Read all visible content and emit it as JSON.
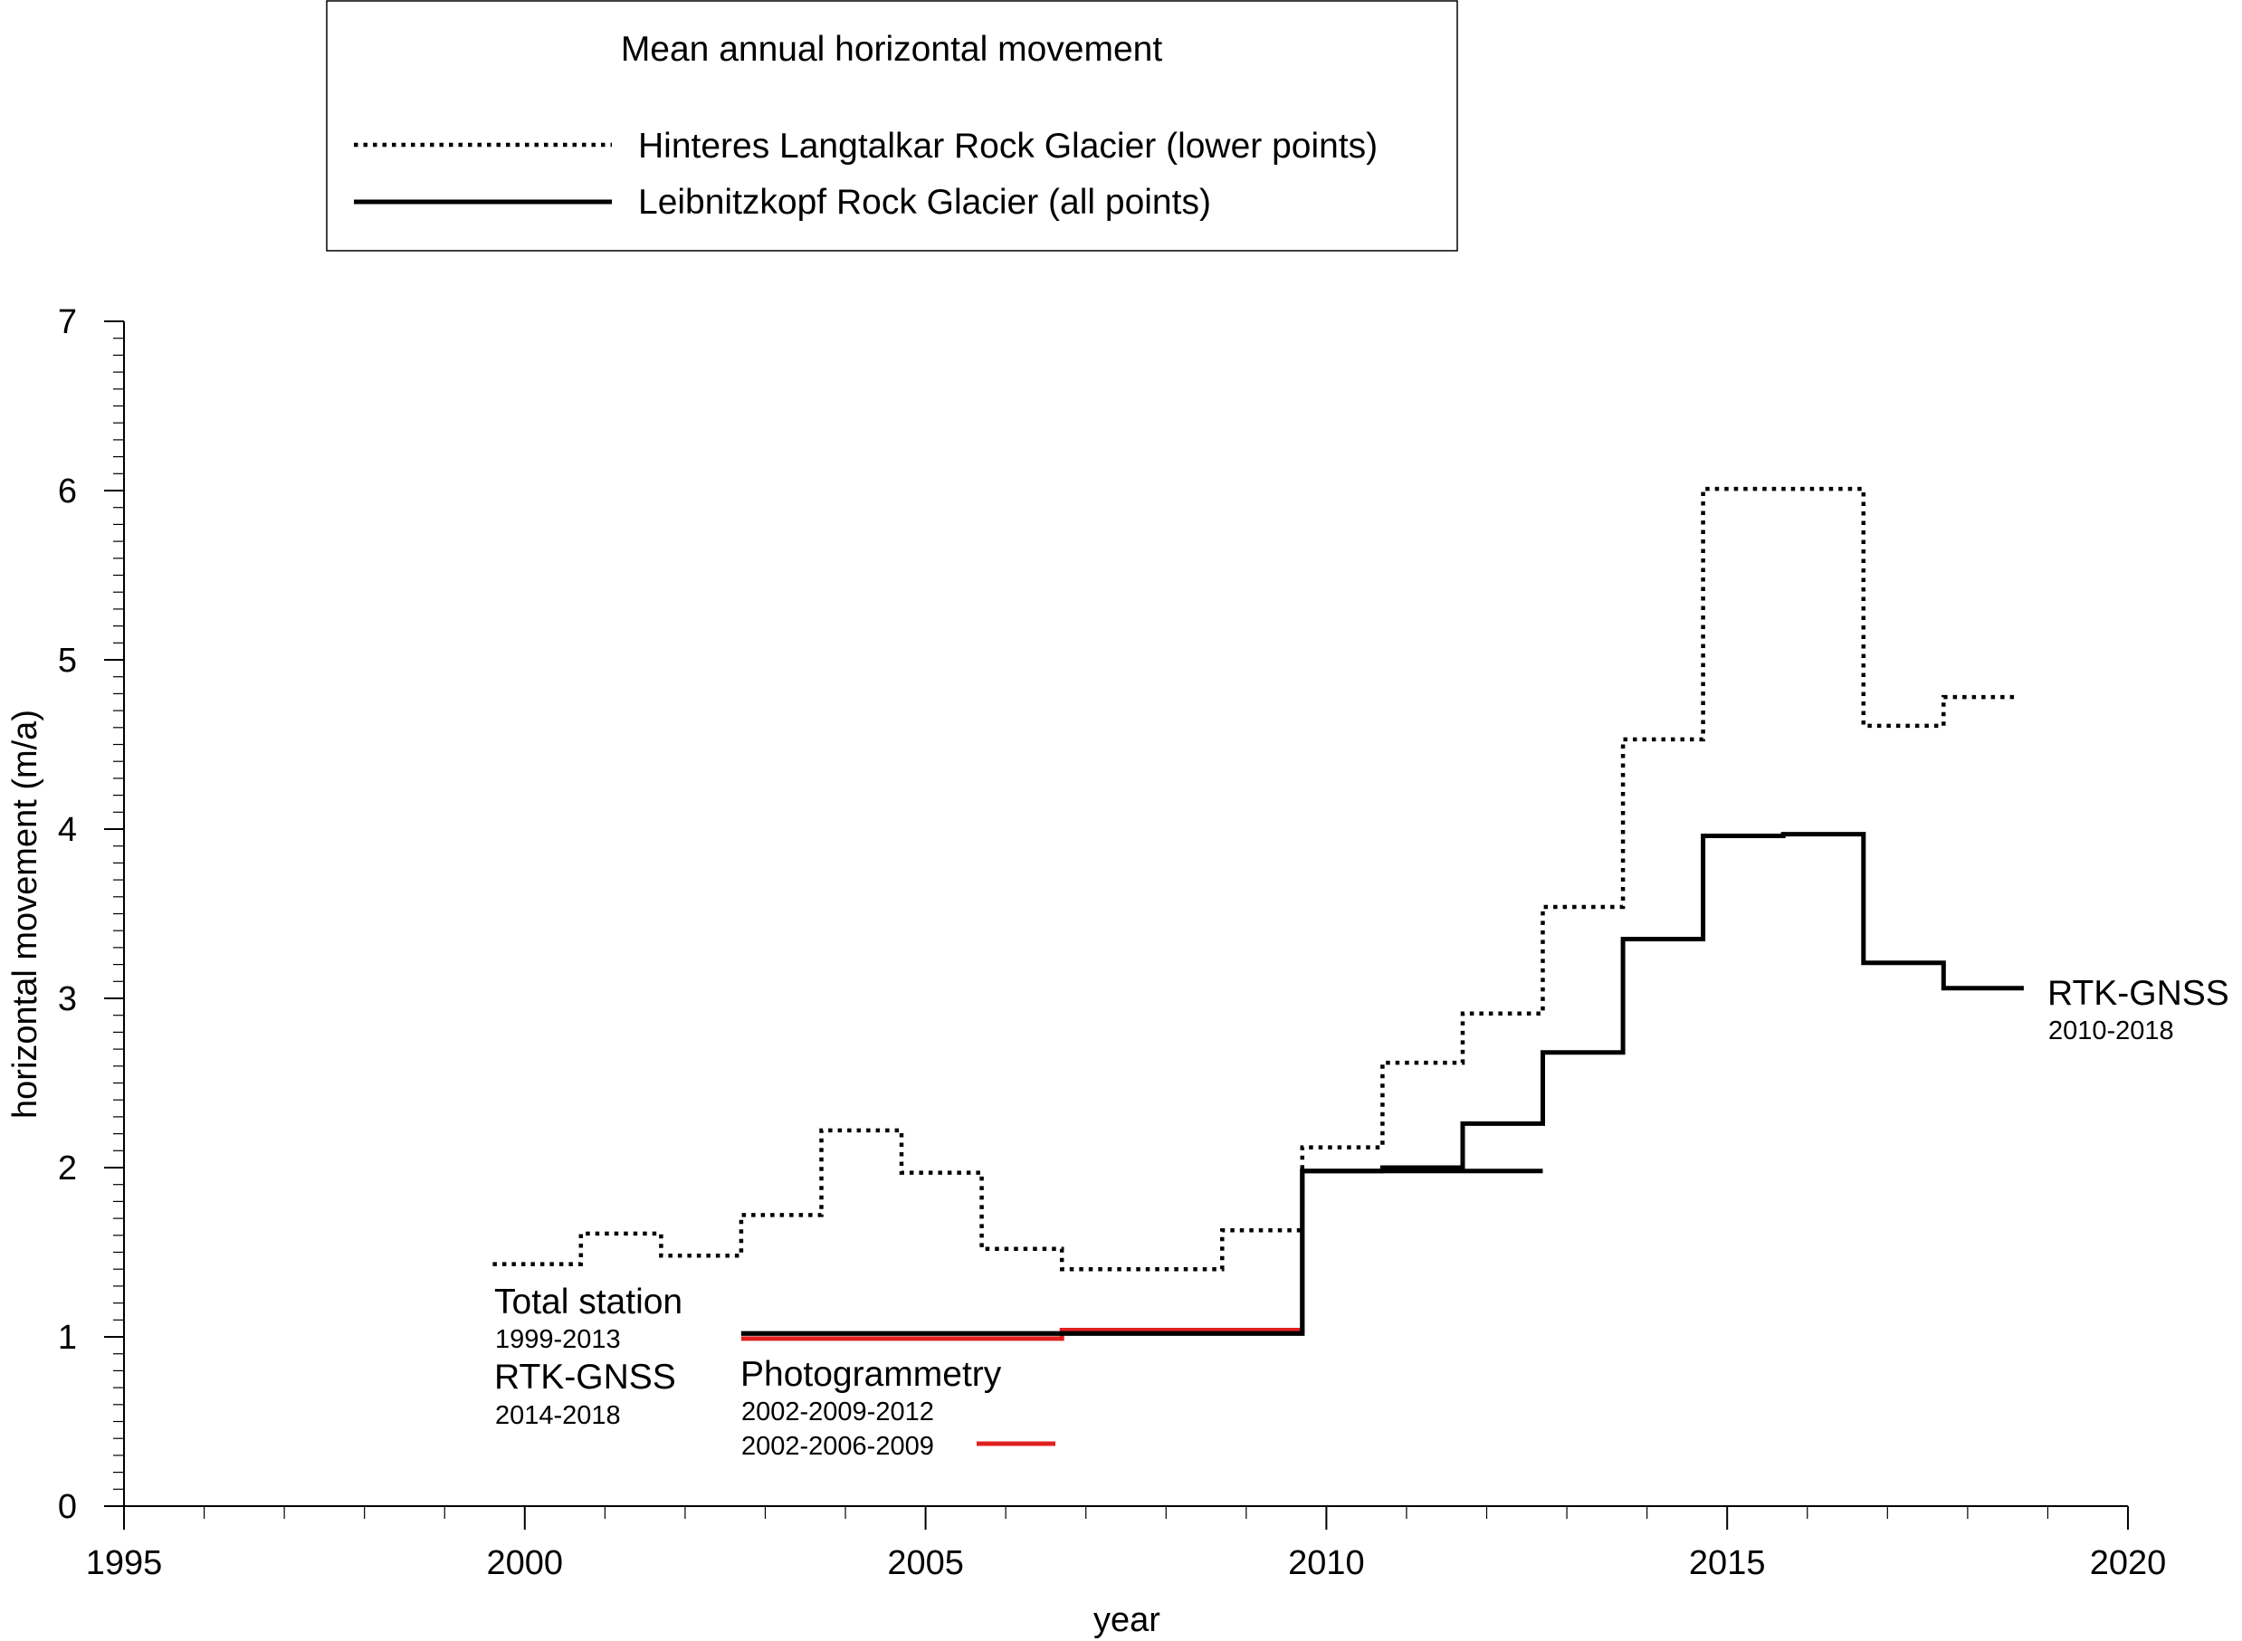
{
  "chart_data": {
    "type": "line",
    "title": "Mean annual horizontal movement",
    "xlabel": "year",
    "ylabel": "horizontal movement (m/a)",
    "xlim": [
      1995,
      2020
    ],
    "ylim": [
      0,
      7
    ],
    "x_ticks": [
      "1995",
      "2000",
      "2005",
      "2010",
      "2015",
      "2020"
    ],
    "y_ticks": [
      "0",
      "1",
      "2",
      "3",
      "4",
      "5",
      "6",
      "7"
    ],
    "grid": false,
    "legend_position": "top",
    "legend": [
      {
        "label": "Hinteres Langtalkar Rock Glacier (lower points)",
        "style": "dotted",
        "color": "#000000"
      },
      {
        "label": "Leibnitzkopf Rock Glacier (all points)",
        "style": "solid",
        "color": "#000000"
      }
    ],
    "series": [
      {
        "name": "Hinteres Langtalkar Rock Glacier (lower points)",
        "style": "dotted",
        "color": "#000000",
        "steps": [
          [
            1999.6,
            2000.7,
            1.43
          ],
          [
            2000.7,
            2001.7,
            1.61
          ],
          [
            2001.7,
            2002.7,
            1.48
          ],
          [
            2002.7,
            2003.7,
            1.72
          ],
          [
            2003.7,
            2004.7,
            2.22
          ],
          [
            2004.7,
            2005.7,
            1.97
          ],
          [
            2005.7,
            2006.7,
            1.52
          ],
          [
            2006.7,
            2008.7,
            1.4
          ],
          [
            2008.7,
            2009.7,
            1.63
          ],
          [
            2009.7,
            2010.7,
            2.12
          ],
          [
            2010.7,
            2011.7,
            2.62
          ],
          [
            2011.7,
            2012.7,
            2.91
          ],
          [
            2012.7,
            2013.7,
            3.54
          ],
          [
            2013.7,
            2014.7,
            4.53
          ],
          [
            2014.7,
            2016.7,
            6.01
          ],
          [
            2016.7,
            2017.7,
            4.61
          ],
          [
            2017.7,
            2018.6,
            4.78
          ]
        ]
      },
      {
        "name": "Leibnitzkopf Rock Glacier (all points)",
        "style": "solid",
        "color": "#000000",
        "steps": [
          [
            2002.7,
            2009.7,
            1.02
          ],
          [
            2009.7,
            2010.7,
            1.98
          ],
          [
            2010.7,
            2011.7,
            2.0
          ],
          [
            2011.7,
            2012.7,
            2.26
          ],
          [
            2012.7,
            2013.7,
            2.68
          ],
          [
            2013.7,
            2014.7,
            3.35
          ],
          [
            2014.7,
            2015.7,
            3.96
          ],
          [
            2015.7,
            2016.7,
            3.97
          ],
          [
            2016.7,
            2017.7,
            3.21
          ],
          [
            2017.7,
            2018.7,
            3.06
          ]
        ]
      },
      {
        "name": "Photogrammetry 2002-2009-2012",
        "style": "solid",
        "color": "#000000",
        "steps": [
          [
            2002.7,
            2009.7,
            1.02
          ],
          [
            2009.7,
            2012.7,
            1.98
          ]
        ]
      },
      {
        "name": "Photogrammetry 2002-2006-2009",
        "style": "solid",
        "color": "#e02020",
        "steps": [
          [
            2002.7,
            2006.7,
            0.99
          ],
          [
            2006.7,
            2009.7,
            1.04
          ]
        ]
      }
    ],
    "annotations": {
      "total_station": {
        "label": "Total station",
        "years": "1999-2013"
      },
      "rtk_left": {
        "label": "RTK-GNSS",
        "years": "2014-2018"
      },
      "photogrammetry": {
        "label": "Photogrammetry",
        "years_a": "2002-2009-2012",
        "years_b": "2002-2006-2009"
      },
      "rtk_right": {
        "label": "RTK-GNSS",
        "years": "2010-2018"
      }
    }
  }
}
